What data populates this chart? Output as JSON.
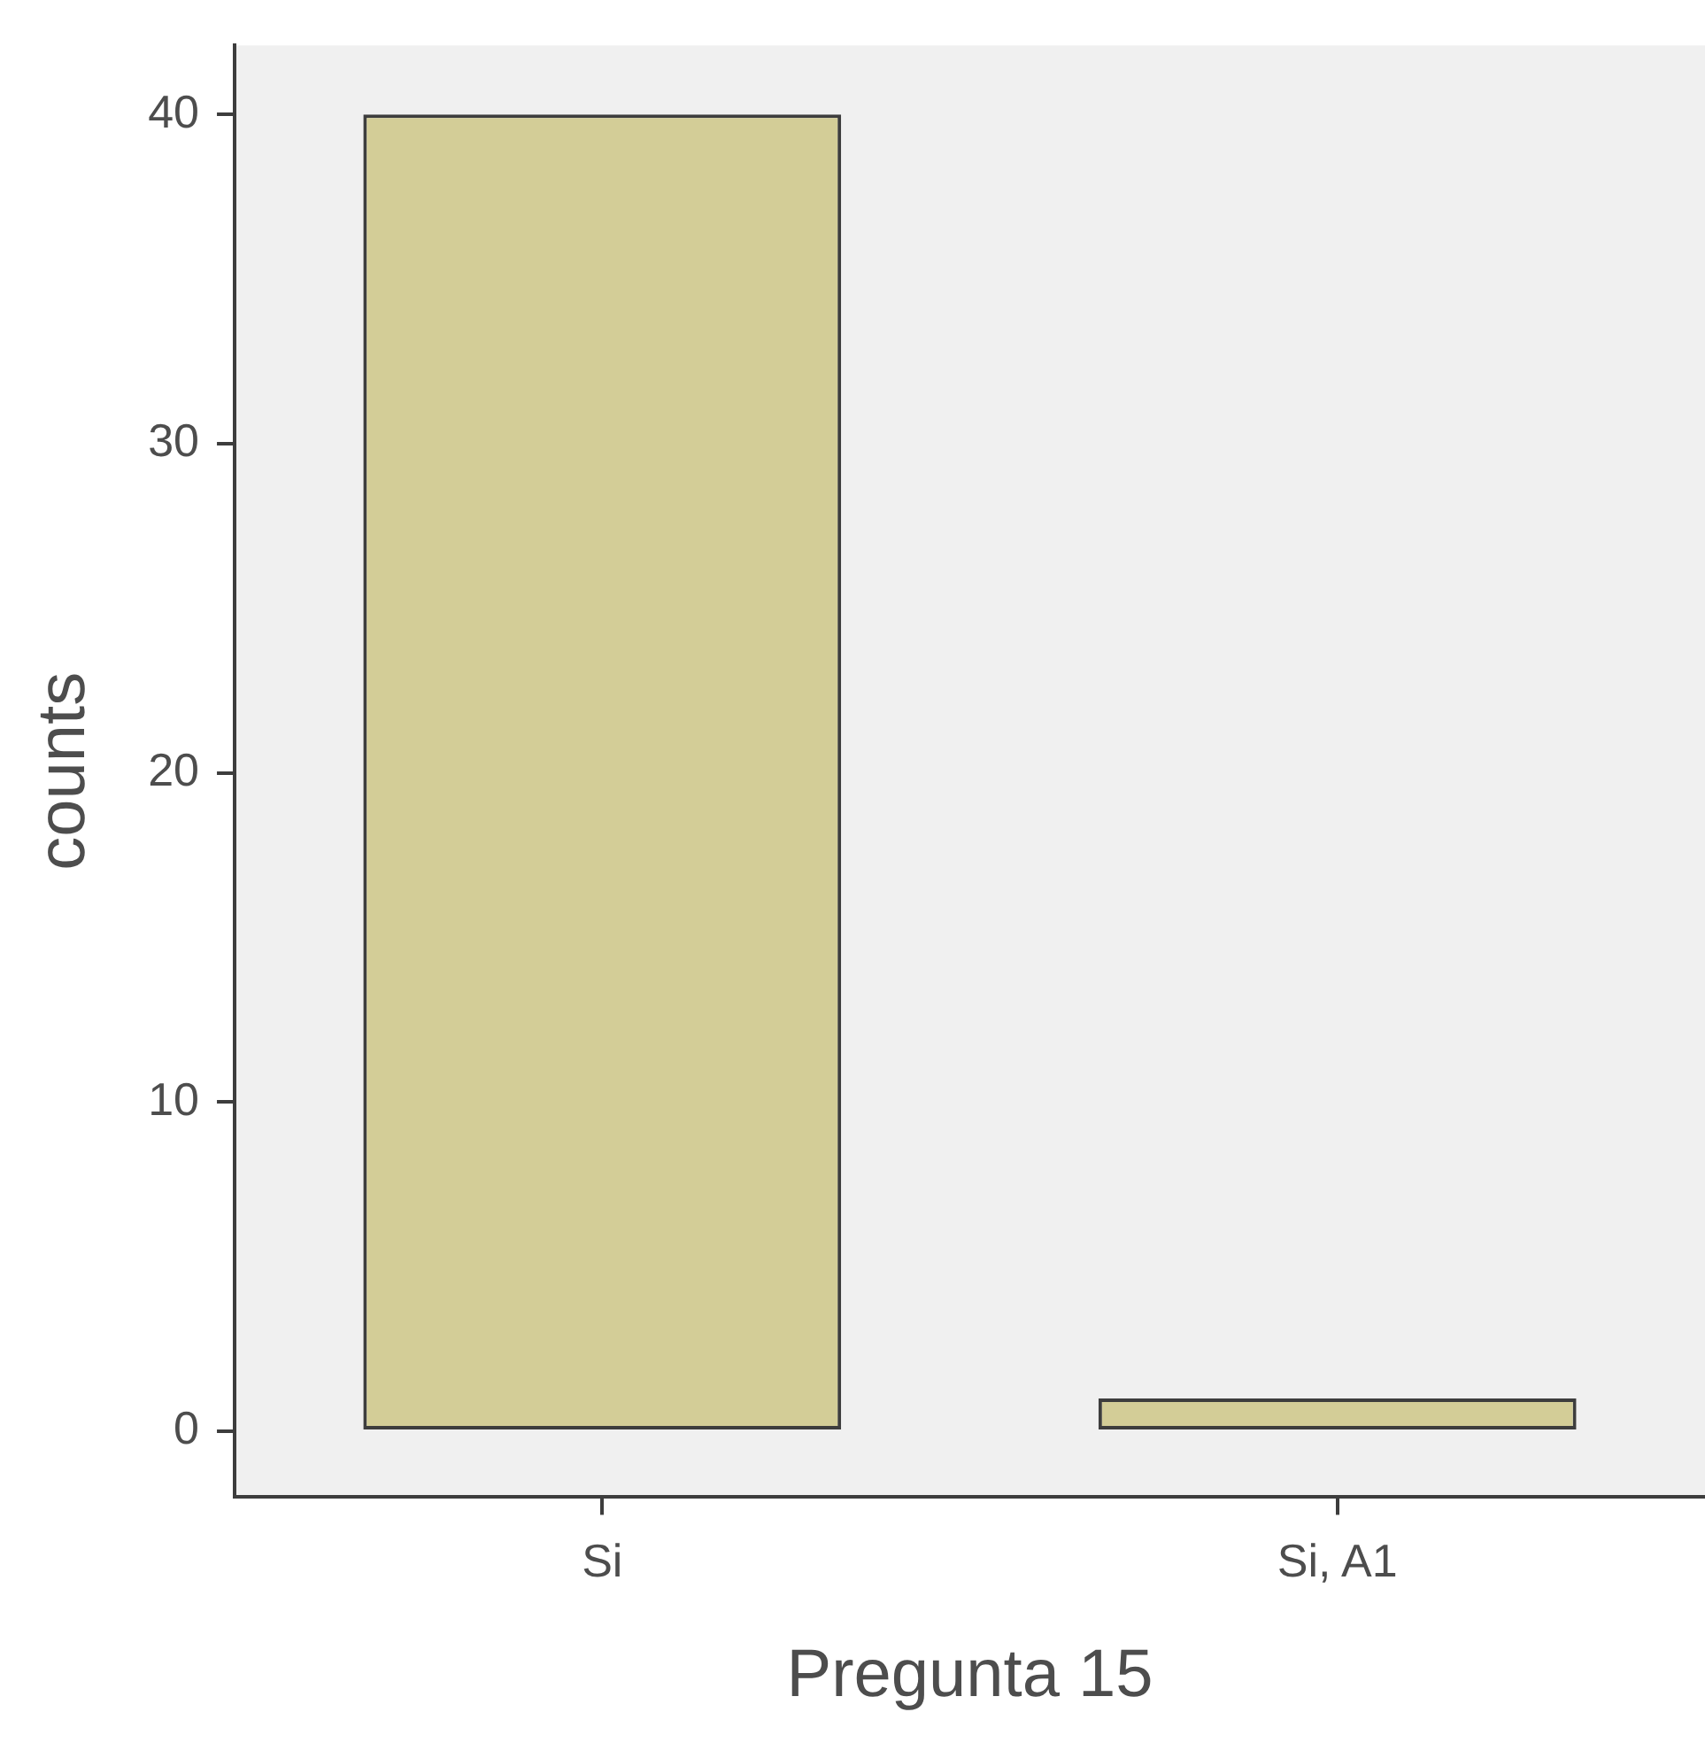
{
  "chart_data": {
    "type": "bar",
    "xlabel": "Pregunta 15",
    "ylabel": "counts",
    "categories": [
      "Si",
      "Si, A1"
    ],
    "values": [
      40,
      1
    ],
    "color": "#d3cd97",
    "ylim": [
      -2,
      42.1
    ],
    "yticks": [
      0,
      10,
      20,
      30,
      40
    ]
  }
}
